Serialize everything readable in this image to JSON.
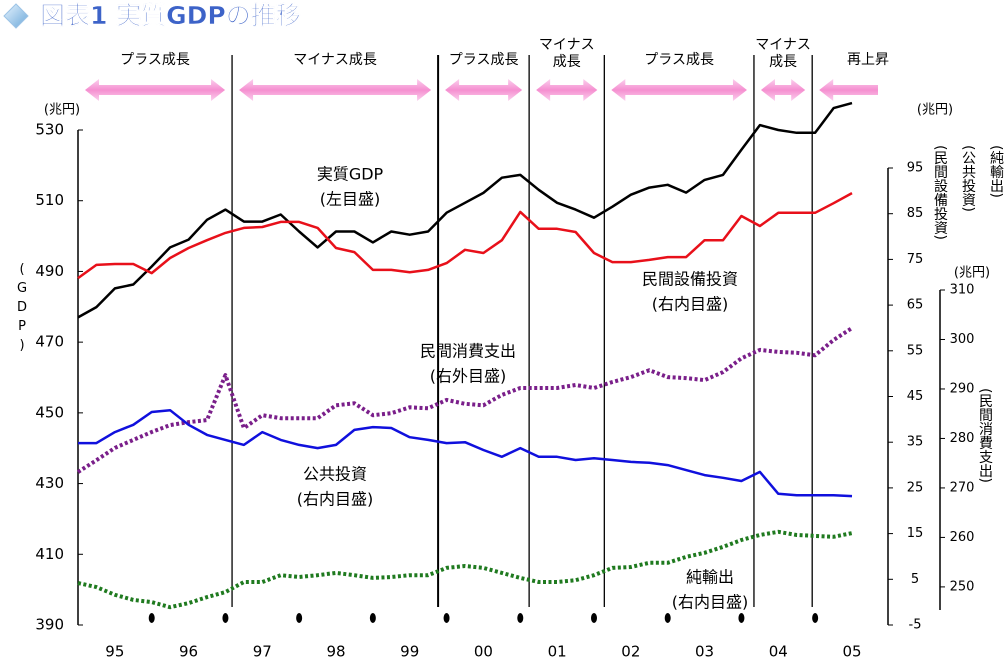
{
  "chart_data": {
    "type": "line",
    "title": "図表1 実質GDPの推移",
    "x": [
      1995,
      1995.25,
      1995.5,
      1995.75,
      1996,
      1996.25,
      1996.5,
      1996.75,
      1997,
      1997.25,
      1997.5,
      1997.75,
      1998,
      1998.25,
      1998.5,
      1998.75,
      1999,
      1999.25,
      1999.5,
      1999.75,
      2000,
      2000.25,
      2000.5,
      2000.75,
      2001,
      2001.25,
      2001.5,
      2001.75,
      2002,
      2002.25,
      2002.5,
      2002.75,
      2003,
      2003.25,
      2003.5,
      2003.75,
      2004,
      2004.25,
      2004.5,
      2004.75,
      2005,
      2005.25,
      2005.5
    ],
    "xlim": [
      1995,
      2005.5
    ],
    "xticks": [
      {
        "value": 1995.5,
        "label": "95"
      },
      {
        "value": 1996.5,
        "label": "96"
      },
      {
        "value": 1997.5,
        "label": "97"
      },
      {
        "value": 1998.5,
        "label": "98"
      },
      {
        "value": 1999.5,
        "label": "99"
      },
      {
        "value": 2000.5,
        "label": "00"
      },
      {
        "value": 2001.5,
        "label": "01"
      },
      {
        "value": 2002.5,
        "label": "02"
      },
      {
        "value": 2003.5,
        "label": "03"
      },
      {
        "value": 2004.5,
        "label": "04"
      },
      {
        "value": 2005.5,
        "label": "05"
      }
    ],
    "xtickmarks": [
      1996,
      1997,
      1998,
      1999,
      2000,
      2001,
      2002,
      2003,
      2004,
      2005
    ],
    "ylim": [
      390,
      530
    ],
    "yticks": [
      390,
      410,
      430,
      450,
      470,
      490,
      510,
      530
    ],
    "y_unit": "(兆円)",
    "y_title": "(GDP)",
    "y2lim": [
      -5,
      95
    ],
    "y2ticks": [
      -5,
      5,
      15,
      25,
      35,
      45,
      55,
      65,
      75,
      85,
      95
    ],
    "y2_unit": "(兆円)",
    "y2_titles": [
      "(民間設備投資)",
      "(公共投資)",
      "(純輸出)"
    ],
    "y3lim": [
      242.3,
      310
    ],
    "y3ticks": [
      250,
      260,
      270,
      280,
      290,
      300,
      310
    ],
    "y3_unit": "(兆円)",
    "y3_title": "(民間消費支出)",
    "boundaries": [
      1997.09,
      1999.885,
      2001.12,
      2002.14,
      2004.17,
      2004.96
    ],
    "phases": [
      {
        "label": [
          "プラス成長"
        ]
      },
      {
        "label": [
          "マイナス成長"
        ]
      },
      {
        "label": [
          "プラス成長"
        ]
      },
      {
        "label": [
          "マイナス",
          "成長"
        ]
      },
      {
        "label": [
          "プラス成長"
        ]
      },
      {
        "label": [
          "マイナス",
          "成長"
        ]
      },
      {
        "label": [
          "再上昇"
        ]
      }
    ],
    "series": [
      {
        "name": "実質GDP",
        "scale_label": "(左目盛)",
        "color": "#000000",
        "axis": "y",
        "style": "solid",
        "values": [
          477.0,
          479.9,
          485.2,
          486.3,
          491.4,
          496.8,
          499.0,
          504.6,
          507.5,
          504.1,
          504.1,
          506.1,
          501.3,
          496.8,
          501.3,
          501.3,
          498.2,
          501.3,
          500.4,
          501.3,
          506.6,
          509.4,
          512.2,
          516.5,
          517.3,
          513.1,
          509.4,
          507.5,
          505.2,
          508.3,
          511.7,
          513.7,
          514.5,
          512.3,
          515.9,
          517.3,
          524.4,
          531.4,
          530.0,
          529.2,
          529.2,
          536.2,
          537.6
        ]
      },
      {
        "name": "民間設備投資",
        "scale_label": "(右内目盛)",
        "color": "#e8101a",
        "axis": "y2",
        "style": "solid",
        "values": [
          70.9,
          73.8,
          74.0,
          74.0,
          72.0,
          75.3,
          77.5,
          79.2,
          80.8,
          81.9,
          82.1,
          83.2,
          83.2,
          81.9,
          77.5,
          76.6,
          72.7,
          72.7,
          72.2,
          72.7,
          74.2,
          77.1,
          76.4,
          79.2,
          85.4,
          81.7,
          81.7,
          81.0,
          76.4,
          74.4,
          74.4,
          74.9,
          75.5,
          75.5,
          79.2,
          79.2,
          84.5,
          82.3,
          85.2,
          85.2,
          85.2,
          87.3,
          89.5
        ]
      },
      {
        "name": "民間消費支出",
        "scale_label": "(右外目盛)",
        "color": "#7a1f8a",
        "axis": "y3",
        "style": "dotted",
        "values": [
          273.2,
          275.6,
          278.1,
          279.7,
          281.3,
          282.7,
          283.3,
          283.7,
          292.8,
          282.1,
          284.7,
          284.1,
          284.1,
          284.1,
          286.7,
          287.1,
          284.7,
          285.1,
          286.3,
          286.1,
          287.8,
          287.0,
          286.7,
          288.8,
          290.2,
          290.2,
          290.2,
          290.8,
          290.2,
          291.4,
          292.4,
          293.8,
          292.4,
          292.2,
          291.8,
          293.4,
          296.2,
          297.9,
          297.5,
          297.3,
          296.8,
          299.9,
          302.3
        ]
      },
      {
        "name": "公共投資",
        "scale_label": "(右内目盛)",
        "color": "#1010dd",
        "axis": "y2",
        "style": "solid",
        "values": [
          34.8,
          34.8,
          37.2,
          38.8,
          41.6,
          42.0,
          38.8,
          36.6,
          35.5,
          34.4,
          37.2,
          35.5,
          34.4,
          33.7,
          34.4,
          37.7,
          38.3,
          38.1,
          36.1,
          35.5,
          34.8,
          35.0,
          33.3,
          31.8,
          33.7,
          31.8,
          31.8,
          31.1,
          31.5,
          31.1,
          30.7,
          30.5,
          30.0,
          28.9,
          27.8,
          27.2,
          26.5,
          28.5,
          23.7,
          23.4,
          23.4,
          23.4,
          23.2
        ]
      },
      {
        "name": "純輸出",
        "scale_label": "(右内目盛)",
        "color": "#1f7a1f",
        "axis": "y2",
        "style": "dotted",
        "values": [
          4.2,
          3.3,
          1.6,
          0.5,
          0.0,
          -1.1,
          -0.2,
          1.1,
          2.2,
          4.4,
          4.4,
          5.9,
          5.5,
          5.9,
          6.4,
          5.9,
          5.3,
          5.5,
          5.9,
          5.9,
          7.5,
          7.9,
          7.5,
          6.4,
          5.3,
          4.4,
          4.4,
          4.8,
          5.9,
          7.5,
          7.7,
          8.6,
          8.6,
          9.9,
          10.8,
          12.1,
          13.6,
          14.7,
          15.4,
          14.7,
          14.5,
          14.3,
          15.1
        ]
      }
    ]
  }
}
